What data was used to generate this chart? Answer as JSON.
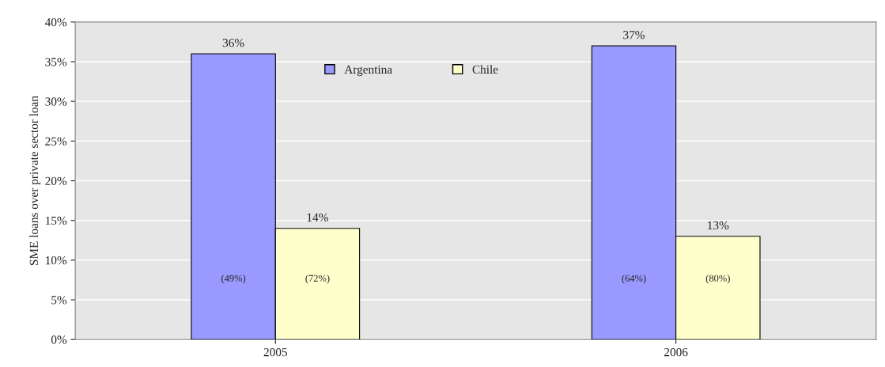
{
  "chart_data": {
    "type": "bar",
    "ylabel": "SME loans over private sector loan",
    "categories": [
      "2005",
      "2006"
    ],
    "series": [
      {
        "name": "Argentina",
        "color": "#9999ff",
        "values": [
          36,
          37
        ],
        "value_labels": [
          "36%",
          "37%"
        ]
      },
      {
        "name": "Chile",
        "color": "#ffffcc",
        "values": [
          14,
          13
        ],
        "value_labels": [
          "14%",
          "13%"
        ]
      }
    ],
    "ylim": [
      0,
      40
    ],
    "yticks": [
      {
        "value": 0,
        "label": "0%"
      },
      {
        "value": 5,
        "label": "5%"
      },
      {
        "value": 10,
        "label": "10%"
      },
      {
        "value": 15,
        "label": "15%"
      },
      {
        "value": 20,
        "label": "20%"
      },
      {
        "value": 25,
        "label": "25%"
      },
      {
        "value": 30,
        "label": "30%"
      },
      {
        "value": 35,
        "label": "35%"
      },
      {
        "value": 40,
        "label": "40%"
      }
    ],
    "annotations": [
      "(49%)",
      "(72%)",
      "(64%)",
      "(80%)"
    ],
    "grid": "y",
    "legend": "top"
  }
}
